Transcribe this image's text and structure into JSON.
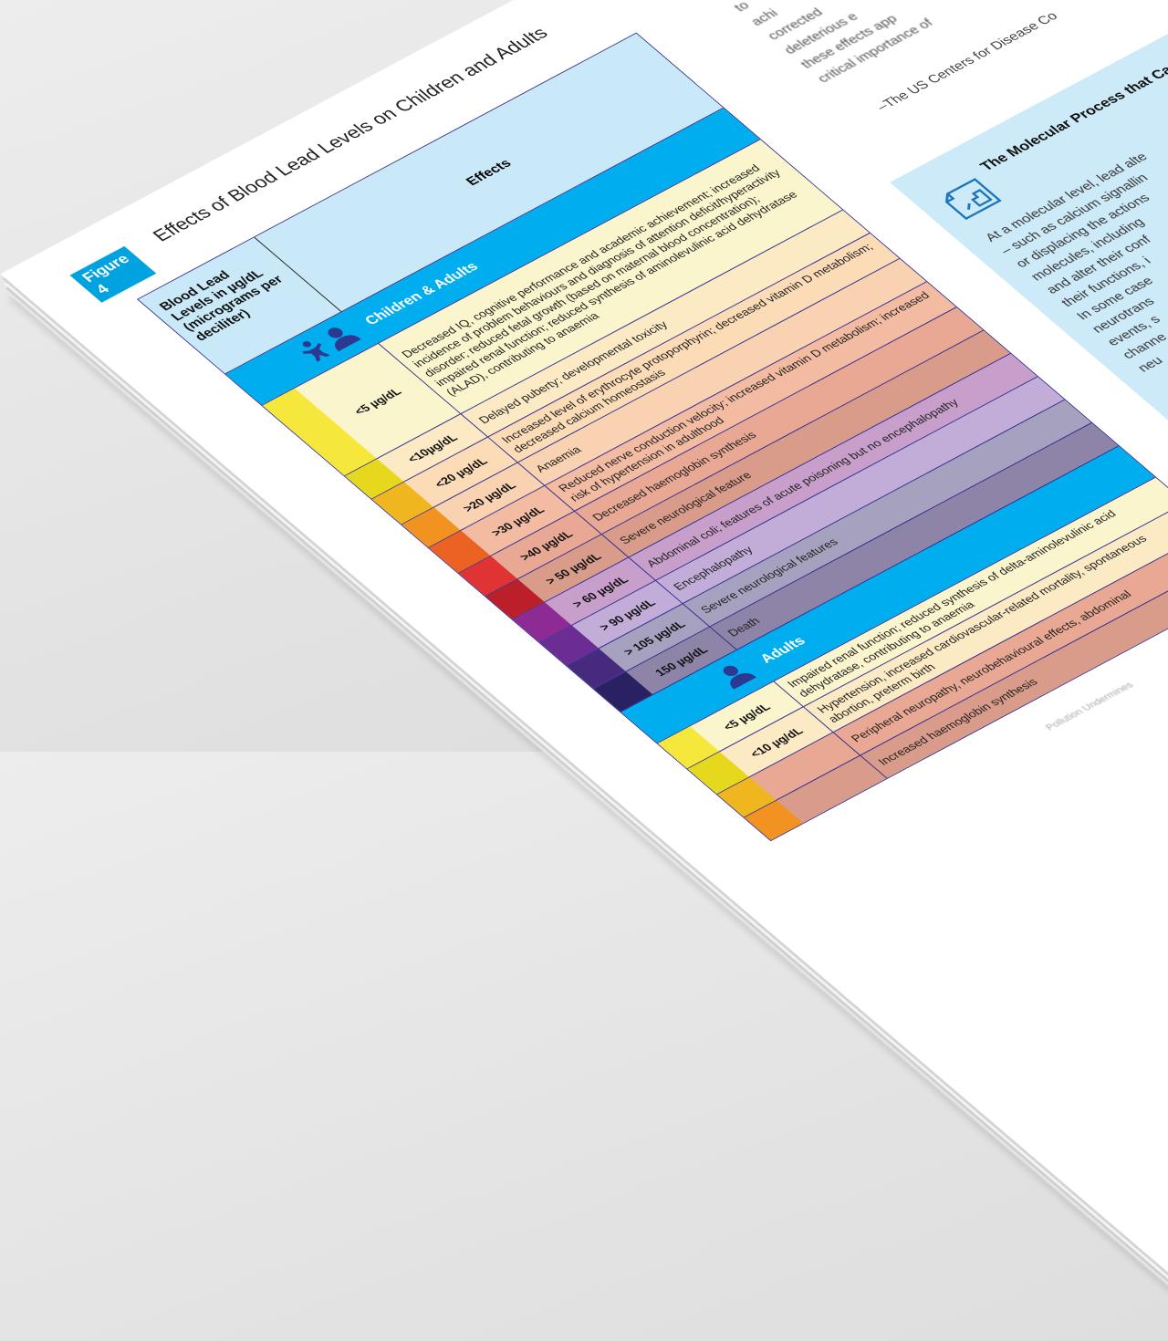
{
  "figure": {
    "badge": "Figure 4",
    "title": "Effects of Blood Lead Levels on Children and Adults"
  },
  "table": {
    "header_level": "Blood Lead Levels in µg/dL (micrograms per deciliter)",
    "header_effects": "Effects",
    "children_section": "Children & Adults",
    "children_rows": [
      {
        "level": "<5 µg/dL",
        "effect": "Decreased IQ, cognitive performance and academic achievement; increased incidence of problem behaviours and diagnosis of attention deficit/hyperactivity disorder; reduced fetal growth (based on maternal blood concentration); impaired renal function; reduced synthesis of aminolevulinic acid dehydratase (ALAD), contributing to anaemia",
        "strip": "#f6e73c",
        "bg": "#faf5cd"
      },
      {
        "level": "<10µg/dL",
        "effect": "Delayed puberty; developmental toxicity",
        "strip": "#e6d81c",
        "bg": "#fbeac4"
      },
      {
        "level": "<20 µg/dL",
        "effect": "Increased level of erythrocyte protoporphyrin; decreased vitamin D metabolism; decreased calcium homeostasis",
        "strip": "#f0b61f",
        "bg": "#fbdcb7"
      },
      {
        "level": ">20 µg/dL",
        "effect": "Anaemia",
        "strip": "#f29220",
        "bg": "#f9d2b2"
      },
      {
        "level": ">30 µg/dL",
        "effect": "Reduced nerve conduction velocity; increased vitamin D metabolism; increased risk of hypertension in adulthood",
        "strip": "#eb6222",
        "bg": "#f3bca2"
      },
      {
        "level": ">40 µg/dL",
        "effect": "Decreased haemoglobin synthesis",
        "strip": "#e03333",
        "bg": "#e9a894"
      },
      {
        "level": "> 50 µg/dL",
        "effect": "Severe neurological feature",
        "strip": "#ba1f2a",
        "bg": "#d99b8a"
      },
      {
        "level": "> 60 µg/dL",
        "effect": "Abdominal coli; features of acute poisoning but no encephalopathy",
        "strip": "#8e2a93",
        "bg": "#c89ecb"
      },
      {
        "level": "> 90 µg/dL",
        "effect": "Encephalopathy",
        "strip": "#6b2d93",
        "bg": "#c1add8"
      },
      {
        "level": "> 105 µg/dL",
        "effect": "Severe neurological features",
        "strip": "#472a7e",
        "bg": "#a7a1c0"
      },
      {
        "level": "150 µg/dL",
        "effect": "Death",
        "strip": "#2a2163",
        "bg": "#8d84a8"
      }
    ],
    "adults_section": "Adults",
    "adult_rows": [
      {
        "level": "<5 µg/dL",
        "effect": "Impaired renal function; reduced synthesis of delta-aminolevulinic acid dehydratase, contributing to anaemia",
        "strip": "#f6e73c",
        "bg": "#faf5cd"
      },
      {
        "level": "<10 µg/dL",
        "effect": "Hypertension, increased cardiovascular-related mortality, spontaneous abortion, preterm birth",
        "strip": "#e6d81c",
        "bg": "#fbeac4"
      },
      {
        "level": "",
        "effect": "Peripheral neuropathy, neurobehavioural effects, abdominal",
        "strip": "#f0b61f",
        "bg": "#e9a894"
      },
      {
        "level": "",
        "effect": "Increased haemoglobin synthesis",
        "strip": "#f29220",
        "bg": "#d99b8a"
      }
    ]
  },
  "quote": {
    "lines": [
      "to",
      "achi",
      "corrected",
      "deleterious e",
      "these effects app",
      "critical importance of"
    ],
    "source": "–The US Centers for Disease Co"
  },
  "sidebox": {
    "icon": "document-chart-icon",
    "title": "The Molecular Process that Causes Lead Toxicity",
    "lines": [
      "At a molecular level, lead alte",
      "– such as calcium signallin",
      "or displacing the actions",
      "molecules, including",
      "and alter their conf",
      "their functions, i",
      "In some case",
      "neurotrans",
      "events, s",
      "channe",
      "neu"
    ]
  },
  "footer": {
    "text": "Pollution Undermines"
  },
  "colors": {
    "accent": "#00aeef",
    "header_bg": "#c9e8f8",
    "rule": "#2b2a8f",
    "icon": "#2b3990"
  }
}
